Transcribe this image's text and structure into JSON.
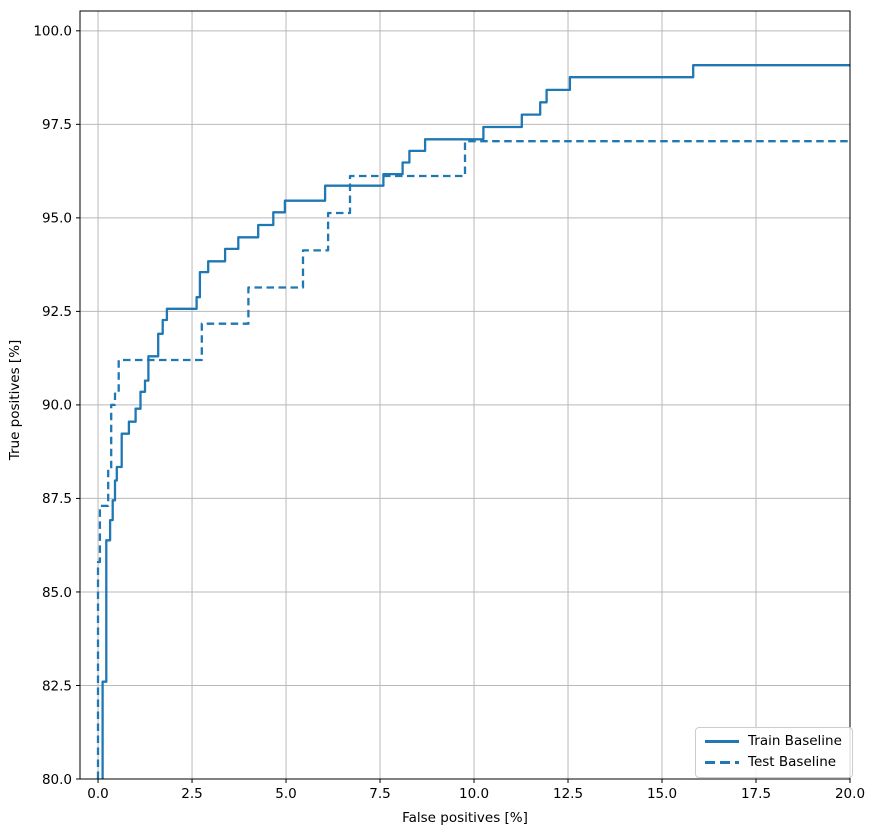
{
  "chart_data": {
    "type": "line",
    "title": "",
    "xlabel": "False positives [%]",
    "ylabel": "True positives [%]",
    "xlim": [
      -0.48,
      20
    ],
    "ylim": [
      80,
      100.53
    ],
    "xticks": [
      0,
      2.5,
      5,
      7.5,
      10,
      12.5,
      15,
      17.5,
      20
    ],
    "yticks": [
      80,
      82.5,
      85,
      87.5,
      90,
      92.5,
      95,
      97.5,
      100
    ],
    "grid": true,
    "grid_color": "#b9b9b9",
    "axis_color": "#000000",
    "line_color": "#1f77b4",
    "legend": {
      "position": "lower right",
      "entries": [
        "Train Baseline",
        "Test Baseline"
      ]
    },
    "series": [
      {
        "name": "Train Baseline",
        "style": "solid",
        "points": [
          [
            0.12,
            80
          ],
          [
            0.12,
            82.6
          ],
          [
            0.22,
            82.6
          ],
          [
            0.22,
            86.38
          ],
          [
            0.32,
            86.38
          ],
          [
            0.32,
            86.92
          ],
          [
            0.39,
            86.92
          ],
          [
            0.39,
            87.45
          ],
          [
            0.45,
            87.45
          ],
          [
            0.45,
            87.98
          ],
          [
            0.5,
            87.98
          ],
          [
            0.5,
            88.34
          ],
          [
            0.63,
            88.34
          ],
          [
            0.63,
            89.23
          ],
          [
            0.82,
            89.23
          ],
          [
            0.82,
            89.55
          ],
          [
            1.0,
            89.55
          ],
          [
            1.0,
            89.9
          ],
          [
            1.13,
            89.9
          ],
          [
            1.13,
            90.35
          ],
          [
            1.25,
            90.35
          ],
          [
            1.25,
            90.65
          ],
          [
            1.34,
            90.65
          ],
          [
            1.34,
            91.3
          ],
          [
            1.6,
            91.3
          ],
          [
            1.6,
            91.9
          ],
          [
            1.72,
            91.9
          ],
          [
            1.72,
            92.27
          ],
          [
            1.83,
            92.27
          ],
          [
            1.83,
            92.57
          ],
          [
            2.62,
            92.57
          ],
          [
            2.62,
            92.88
          ],
          [
            2.71,
            92.88
          ],
          [
            2.71,
            93.55
          ],
          [
            2.93,
            93.55
          ],
          [
            2.93,
            93.84
          ],
          [
            3.38,
            93.84
          ],
          [
            3.38,
            94.17
          ],
          [
            3.73,
            94.17
          ],
          [
            3.73,
            94.48
          ],
          [
            4.26,
            94.48
          ],
          [
            4.26,
            94.81
          ],
          [
            4.66,
            94.81
          ],
          [
            4.66,
            95.15
          ],
          [
            4.97,
            95.15
          ],
          [
            4.97,
            95.46
          ],
          [
            6.04,
            95.46
          ],
          [
            6.04,
            95.86
          ],
          [
            7.59,
            95.86
          ],
          [
            7.59,
            96.17
          ],
          [
            8.1,
            96.17
          ],
          [
            8.1,
            96.48
          ],
          [
            8.28,
            96.48
          ],
          [
            8.28,
            96.79
          ],
          [
            8.7,
            96.79
          ],
          [
            8.7,
            97.1
          ],
          [
            10.25,
            97.1
          ],
          [
            10.25,
            97.43
          ],
          [
            11.27,
            97.43
          ],
          [
            11.27,
            97.76
          ],
          [
            11.76,
            97.76
          ],
          [
            11.76,
            98.09
          ],
          [
            11.93,
            98.09
          ],
          [
            11.93,
            98.42
          ],
          [
            12.55,
            98.42
          ],
          [
            12.55,
            98.76
          ],
          [
            15.83,
            98.76
          ],
          [
            15.83,
            99.08
          ],
          [
            20,
            99.08
          ]
        ]
      },
      {
        "name": "Test Baseline",
        "style": "dashed",
        "points": [
          [
            0.0,
            80
          ],
          [
            0.0,
            85.8
          ],
          [
            0.05,
            85.8
          ],
          [
            0.05,
            87.3
          ],
          [
            0.27,
            87.3
          ],
          [
            0.27,
            88.3
          ],
          [
            0.35,
            88.3
          ],
          [
            0.35,
            90.0
          ],
          [
            0.45,
            90.0
          ],
          [
            0.45,
            90.3
          ],
          [
            0.55,
            90.3
          ],
          [
            0.55,
            91.2
          ],
          [
            2.76,
            91.2
          ],
          [
            2.76,
            92.17
          ],
          [
            4.0,
            92.17
          ],
          [
            4.0,
            93.14
          ],
          [
            5.45,
            93.14
          ],
          [
            5.45,
            94.13
          ],
          [
            6.12,
            94.13
          ],
          [
            6.12,
            95.13
          ],
          [
            6.7,
            95.13
          ],
          [
            6.7,
            96.12
          ],
          [
            9.76,
            96.12
          ],
          [
            9.76,
            97.05
          ],
          [
            20,
            97.05
          ]
        ]
      }
    ]
  }
}
